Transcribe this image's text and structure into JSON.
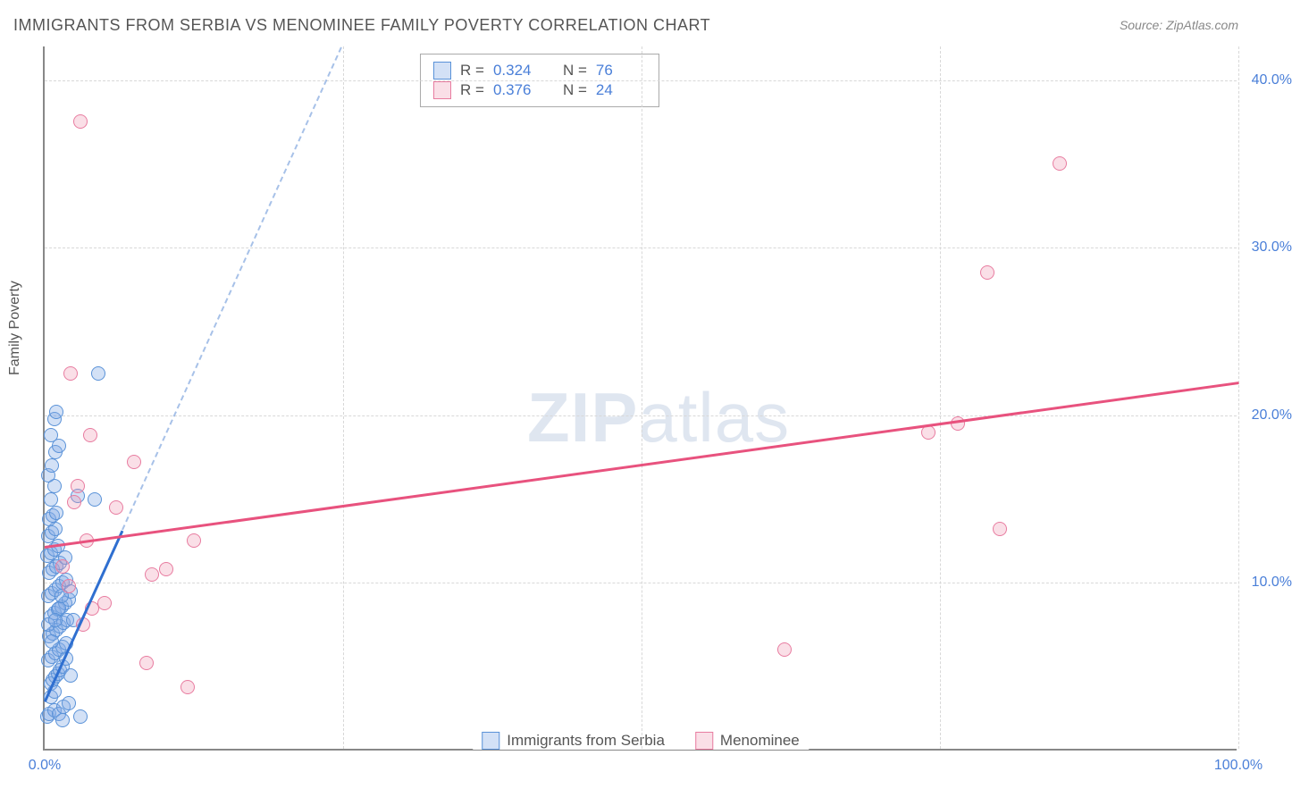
{
  "title": "IMMIGRANTS FROM SERBIA VS MENOMINEE FAMILY POVERTY CORRELATION CHART",
  "source": "Source: ZipAtlas.com",
  "ylabel": "Family Poverty",
  "watermark": {
    "bold": "ZIP",
    "rest": "atlas"
  },
  "chart": {
    "type": "scatter",
    "xlim": [
      0,
      100
    ],
    "ylim": [
      0,
      42
    ],
    "xticks": [
      {
        "v": 0,
        "label": "0.0%"
      },
      {
        "v": 100,
        "label": "100.0%"
      }
    ],
    "yticks": [
      {
        "v": 10,
        "label": "10.0%"
      },
      {
        "v": 20,
        "label": "20.0%"
      },
      {
        "v": 30,
        "label": "30.0%"
      },
      {
        "v": 40,
        "label": "40.0%"
      }
    ],
    "grid_x": [
      25,
      50,
      75,
      100
    ],
    "grid_color": "#d8d8d8",
    "background_color": "#ffffff",
    "axis_color": "#888888",
    "marker_radius": 8,
    "series": [
      {
        "name": "Immigrants from Serbia",
        "fill": "rgba(128,170,230,0.35)",
        "stroke": "#5a92d8",
        "trend_color": "#2f6fd0",
        "trend_dashed_color": "rgba(120,160,220,0.65)",
        "R": "0.324",
        "N": "76",
        "trend": {
          "x1": 0,
          "y1": 3.0,
          "x2": 100,
          "y2": 160
        },
        "solid_upto_x": 6.5,
        "points": [
          [
            0.2,
            2.0
          ],
          [
            0.4,
            2.2
          ],
          [
            0.8,
            2.4
          ],
          [
            1.2,
            2.2
          ],
          [
            1.6,
            2.6
          ],
          [
            2.0,
            2.8
          ],
          [
            0.5,
            4.0
          ],
          [
            0.7,
            4.2
          ],
          [
            0.9,
            4.4
          ],
          [
            1.1,
            4.6
          ],
          [
            1.3,
            4.8
          ],
          [
            1.5,
            5.0
          ],
          [
            0.3,
            5.4
          ],
          [
            0.6,
            5.6
          ],
          [
            0.9,
            5.8
          ],
          [
            1.2,
            6.0
          ],
          [
            1.5,
            6.2
          ],
          [
            1.8,
            6.4
          ],
          [
            0.4,
            6.8
          ],
          [
            0.7,
            7.0
          ],
          [
            1.0,
            7.2
          ],
          [
            1.3,
            7.4
          ],
          [
            1.6,
            7.6
          ],
          [
            1.9,
            7.8
          ],
          [
            0.5,
            8.0
          ],
          [
            0.8,
            8.2
          ],
          [
            1.1,
            8.4
          ],
          [
            1.4,
            8.6
          ],
          [
            1.7,
            8.8
          ],
          [
            2.0,
            9.0
          ],
          [
            0.3,
            9.2
          ],
          [
            0.6,
            9.4
          ],
          [
            0.9,
            9.6
          ],
          [
            1.2,
            9.8
          ],
          [
            1.5,
            10.0
          ],
          [
            1.8,
            10.2
          ],
          [
            0.4,
            10.6
          ],
          [
            0.7,
            10.8
          ],
          [
            1.0,
            11.0
          ],
          [
            1.3,
            11.2
          ],
          [
            0.2,
            11.6
          ],
          [
            0.5,
            11.8
          ],
          [
            0.8,
            12.0
          ],
          [
            1.1,
            12.2
          ],
          [
            0.3,
            12.8
          ],
          [
            0.6,
            13.0
          ],
          [
            0.9,
            13.2
          ],
          [
            0.4,
            13.8
          ],
          [
            0.7,
            14.0
          ],
          [
            1.0,
            14.2
          ],
          [
            0.5,
            15.0
          ],
          [
            4.2,
            15.0
          ],
          [
            0.8,
            15.8
          ],
          [
            2.8,
            15.2
          ],
          [
            0.3,
            16.4
          ],
          [
            0.6,
            17.0
          ],
          [
            0.9,
            17.8
          ],
          [
            1.2,
            18.2
          ],
          [
            0.5,
            18.8
          ],
          [
            0.8,
            19.8
          ],
          [
            1.0,
            20.2
          ],
          [
            0.3,
            7.5
          ],
          [
            1.2,
            8.5
          ],
          [
            2.2,
            9.5
          ],
          [
            4.5,
            22.5
          ],
          [
            2.4,
            7.8
          ],
          [
            1.8,
            5.5
          ],
          [
            0.6,
            6.5
          ],
          [
            0.9,
            7.8
          ],
          [
            1.4,
            9.2
          ],
          [
            1.7,
            11.5
          ],
          [
            0.5,
            3.2
          ],
          [
            0.8,
            3.5
          ],
          [
            2.2,
            4.5
          ],
          [
            1.5,
            1.8
          ],
          [
            3.0,
            2.0
          ]
        ]
      },
      {
        "name": "Menominee",
        "fill": "rgba(240,150,175,0.3)",
        "stroke": "#e87ca0",
        "trend_color": "#e8527e",
        "R": "0.376",
        "N": "24",
        "trend": {
          "x1": 0,
          "y1": 12.2,
          "x2": 100,
          "y2": 22.0
        },
        "points": [
          [
            3.0,
            37.5
          ],
          [
            2.2,
            22.5
          ],
          [
            3.8,
            18.8
          ],
          [
            2.5,
            14.8
          ],
          [
            7.5,
            17.2
          ],
          [
            4.0,
            8.5
          ],
          [
            9.0,
            10.5
          ],
          [
            10.2,
            10.8
          ],
          [
            5.0,
            8.8
          ],
          [
            12.5,
            12.5
          ],
          [
            8.5,
            5.2
          ],
          [
            12.0,
            3.8
          ],
          [
            3.5,
            12.5
          ],
          [
            2.0,
            9.8
          ],
          [
            3.2,
            7.5
          ],
          [
            62.0,
            6.0
          ],
          [
            74.0,
            19.0
          ],
          [
            76.5,
            19.5
          ],
          [
            79.0,
            28.5
          ],
          [
            80.0,
            13.2
          ],
          [
            85.0,
            35.0
          ],
          [
            6.0,
            14.5
          ],
          [
            1.5,
            11.0
          ],
          [
            2.8,
            15.8
          ]
        ]
      }
    ]
  },
  "stats_legend": {
    "rows": [
      {
        "swatch_fill": "rgba(128,170,230,0.35)",
        "swatch_stroke": "#5a92d8",
        "R_label": "R =",
        "R": "0.324",
        "N_label": "N =",
        "N": "76"
      },
      {
        "swatch_fill": "rgba(240,150,175,0.3)",
        "swatch_stroke": "#e87ca0",
        "R_label": "R =",
        "R": "0.376",
        "N_label": "N =",
        "N": "24"
      }
    ]
  },
  "bottom_legend": {
    "items": [
      {
        "swatch_fill": "rgba(128,170,230,0.35)",
        "swatch_stroke": "#5a92d8",
        "label": "Immigrants from Serbia"
      },
      {
        "swatch_fill": "rgba(240,150,175,0.3)",
        "swatch_stroke": "#e87ca0",
        "label": "Menominee"
      }
    ]
  }
}
